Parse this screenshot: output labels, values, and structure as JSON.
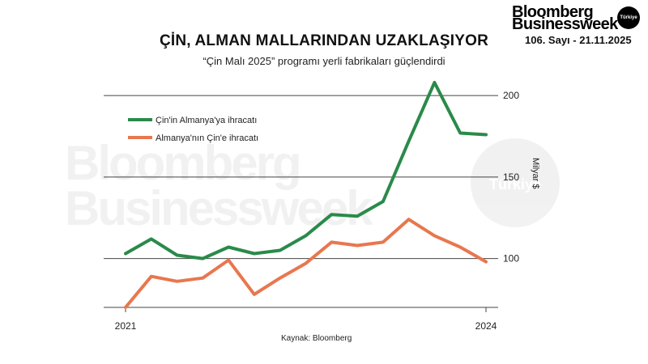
{
  "brand": {
    "line1": "Bloomberg",
    "line2": "Businessweek",
    "badge": "Türkiye",
    "issue": "106. Sayı - 21.11.2025"
  },
  "watermark": {
    "line1": "Bloomberg",
    "line2": "Businessweek",
    "circle": "Türkiye"
  },
  "chart_data": {
    "type": "line",
    "title": "ÇİN, ALMAN MALLARINDAN UZAKLAŞIYOR",
    "subtitle": "“Çin Malı 2025” programı yerli fabrikaları güçlendirdi",
    "ylabel": "Milyar $",
    "ylim": [
      70,
      210
    ],
    "yticks": [
      100,
      150,
      200
    ],
    "xtick_labels": [
      "2021",
      "2024"
    ],
    "grid": true,
    "legend_position": "top-left",
    "source": "Kaynak: Bloomberg",
    "series": [
      {
        "name": "Çin'in Almanya'ya ihracatı",
        "color": "#2a8a4a",
        "values": [
          103,
          112,
          102,
          100,
          107,
          103,
          105,
          114,
          127,
          126,
          135,
          172,
          208,
          177,
          176
        ]
      },
      {
        "name": "Almanya'nın Çin'e ihracatı",
        "color": "#e8774e",
        "values": [
          70,
          89,
          86,
          88,
          99,
          78,
          88,
          97,
          110,
          108,
          110,
          124,
          114,
          107,
          98
        ]
      }
    ]
  }
}
